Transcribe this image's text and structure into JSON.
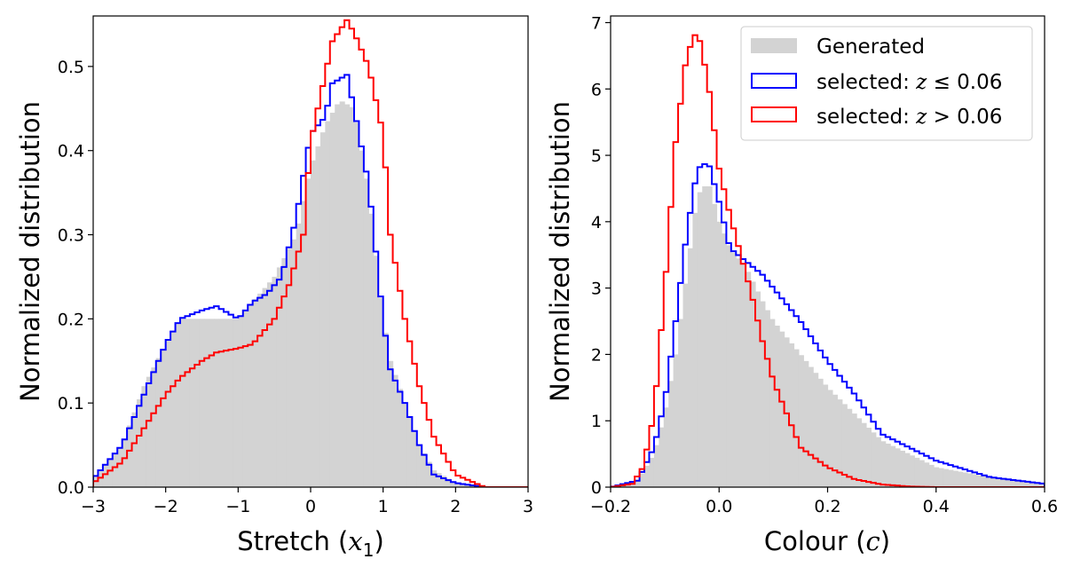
{
  "chart_data": [
    {
      "type": "histogram",
      "xlabel_prefix": "Stretch (",
      "xlabel_math": "x",
      "xlabel_sub": "1",
      "xlabel_suffix": ")",
      "ylabel": "Normalized distribution",
      "xlim": [
        -3,
        3
      ],
      "ylim": [
        0,
        0.56
      ],
      "xticks": [
        -3,
        -2,
        -1,
        0,
        1,
        2,
        3
      ],
      "yticks": [
        0.0,
        0.1,
        0.2,
        0.3,
        0.4,
        0.5
      ],
      "xtick_labels": [
        "−3",
        "−2",
        "−1",
        "0",
        "1",
        "2",
        "3"
      ],
      "ytick_labels": [
        "0.0",
        "0.1",
        "0.2",
        "0.3",
        "0.4",
        "0.5"
      ],
      "series": [
        {
          "key": "generated",
          "style": "filled",
          "color": "#d3d3d3",
          "x": [
            -3.0,
            -2.6,
            -2.3,
            -2.0,
            -1.8,
            -1.5,
            -1.2,
            -1.0,
            -0.8,
            -0.5,
            -0.2,
            0.0,
            0.2,
            0.4,
            0.6,
            0.8,
            1.0,
            1.1,
            1.3,
            1.5,
            1.7,
            2.0,
            2.4
          ],
          "y": [
            0.01,
            0.05,
            0.12,
            0.17,
            0.2,
            0.2,
            0.2,
            0.2,
            0.22,
            0.25,
            0.3,
            0.38,
            0.43,
            0.46,
            0.45,
            0.35,
            0.2,
            0.15,
            0.1,
            0.05,
            0.02,
            0.005,
            0.0
          ]
        },
        {
          "key": "selected_low",
          "style": "step",
          "color": "#0000ff",
          "x": [
            -3.0,
            -2.6,
            -2.3,
            -2.0,
            -1.8,
            -1.5,
            -1.3,
            -1.0,
            -0.8,
            -0.6,
            -0.4,
            -0.2,
            0.0,
            0.2,
            0.3,
            0.5,
            0.6,
            0.8,
            1.0,
            1.1,
            1.3,
            1.5,
            1.7,
            2.0,
            2.4
          ],
          "y": [
            0.01,
            0.05,
            0.11,
            0.17,
            0.2,
            0.21,
            0.215,
            0.2,
            0.22,
            0.23,
            0.25,
            0.32,
            0.42,
            0.44,
            0.48,
            0.49,
            0.45,
            0.36,
            0.2,
            0.14,
            0.1,
            0.05,
            0.015,
            0.005,
            0.0
          ]
        },
        {
          "key": "selected_high",
          "style": "step",
          "color": "#ff0000",
          "x": [
            -3.0,
            -2.6,
            -2.3,
            -2.0,
            -1.8,
            -1.5,
            -1.3,
            -1.0,
            -0.8,
            -0.5,
            -0.3,
            -0.1,
            0.0,
            0.2,
            0.3,
            0.5,
            0.6,
            0.8,
            1.0,
            1.1,
            1.3,
            1.5,
            1.7,
            2.0,
            2.4
          ],
          "y": [
            0.005,
            0.03,
            0.07,
            0.11,
            0.13,
            0.15,
            0.16,
            0.165,
            0.17,
            0.2,
            0.24,
            0.3,
            0.41,
            0.49,
            0.53,
            0.555,
            0.54,
            0.5,
            0.42,
            0.3,
            0.2,
            0.12,
            0.06,
            0.015,
            0.0
          ]
        }
      ]
    },
    {
      "type": "histogram",
      "xlabel_prefix": "Colour (",
      "xlabel_math": "c",
      "xlabel_sub": "",
      "xlabel_suffix": ")",
      "ylabel": "Normalized distribution",
      "xlim": [
        -0.2,
        0.6
      ],
      "ylim": [
        0,
        7.1
      ],
      "xticks": [
        -0.2,
        0.0,
        0.2,
        0.4,
        0.6
      ],
      "yticks": [
        0,
        1,
        2,
        3,
        4,
        5,
        6,
        7
      ],
      "xtick_labels": [
        "−0.2",
        "0.0",
        "0.2",
        "0.4",
        "0.6"
      ],
      "ytick_labels": [
        "0",
        "1",
        "2",
        "3",
        "4",
        "5",
        "6",
        "7"
      ],
      "legend": {
        "position": "upper-right",
        "entries": [
          {
            "key": "generated",
            "text": "Generated",
            "math": "",
            "suffix": ""
          },
          {
            "key": "selected_low",
            "text": "selected: ",
            "math": "z",
            "suffix": " ≤ 0.06"
          },
          {
            "key": "selected_high",
            "text": "selected: ",
            "math": "z",
            "suffix": " > 0.06"
          }
        ]
      },
      "series": [
        {
          "key": "generated",
          "style": "filled",
          "color": "#d3d3d3",
          "x": [
            -0.2,
            -0.15,
            -0.12,
            -0.1,
            -0.08,
            -0.06,
            -0.04,
            -0.02,
            0.0,
            0.02,
            0.05,
            0.08,
            0.1,
            0.15,
            0.2,
            0.25,
            0.3,
            0.4,
            0.5,
            0.6
          ],
          "y": [
            0.0,
            0.1,
            0.5,
            1.1,
            2.0,
            3.2,
            4.4,
            4.6,
            4.0,
            3.6,
            3.3,
            2.8,
            2.5,
            2.0,
            1.5,
            1.1,
            0.7,
            0.3,
            0.15,
            0.05
          ]
        },
        {
          "key": "selected_low",
          "style": "step",
          "color": "#0000ff",
          "x": [
            -0.2,
            -0.15,
            -0.12,
            -0.1,
            -0.08,
            -0.06,
            -0.04,
            -0.02,
            0.0,
            0.02,
            0.05,
            0.08,
            0.1,
            0.15,
            0.2,
            0.25,
            0.3,
            0.4,
            0.5,
            0.6
          ],
          "y": [
            0.0,
            0.1,
            0.6,
            1.3,
            2.5,
            3.8,
            4.8,
            4.9,
            4.3,
            3.6,
            3.4,
            3.2,
            3.0,
            2.5,
            1.9,
            1.4,
            0.8,
            0.4,
            0.15,
            0.05
          ]
        },
        {
          "key": "selected_high",
          "style": "step",
          "color": "#ff0000",
          "x": [
            -0.2,
            -0.16,
            -0.14,
            -0.12,
            -0.1,
            -0.08,
            -0.06,
            -0.04,
            -0.02,
            0.0,
            0.02,
            0.04,
            0.06,
            0.08,
            0.1,
            0.12,
            0.15,
            0.2,
            0.25,
            0.3,
            0.35,
            0.4
          ],
          "y": [
            0.0,
            0.05,
            0.3,
            1.1,
            3.0,
            5.2,
            6.5,
            6.9,
            6.1,
            4.8,
            4.1,
            3.5,
            2.9,
            2.2,
            1.6,
            1.2,
            0.6,
            0.3,
            0.12,
            0.04,
            0.01,
            0.0
          ]
        }
      ]
    }
  ]
}
